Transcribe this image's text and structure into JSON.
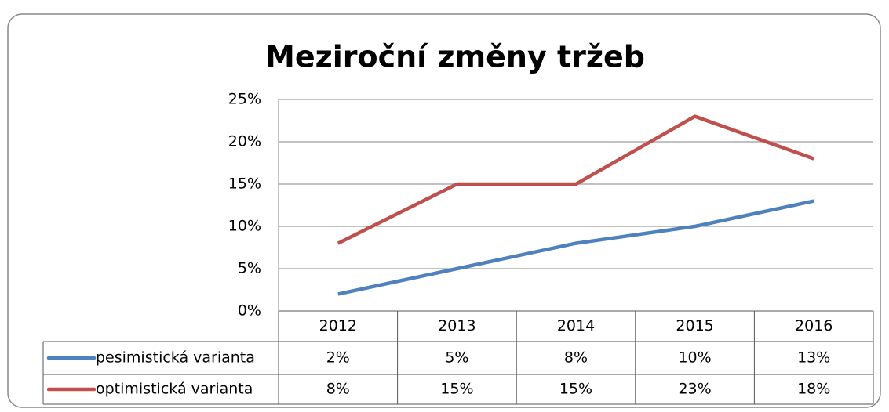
{
  "chart_data": {
    "type": "line",
    "title": "Meziroční změny tržeb",
    "categories": [
      "2012",
      "2013",
      "2014",
      "2015",
      "2016"
    ],
    "series": [
      {
        "name": "pesimistická varianta",
        "color": "#4f81bd",
        "values": [
          2,
          5,
          8,
          10,
          13
        ],
        "value_labels": [
          "2%",
          "5%",
          "8%",
          "10%",
          "13%"
        ]
      },
      {
        "name": "optimistická varianta",
        "color": "#c0504d",
        "values": [
          8,
          15,
          15,
          23,
          18
        ],
        "value_labels": [
          "8%",
          "15%",
          "15%",
          "23%",
          "18%"
        ]
      }
    ],
    "ylim": [
      0,
      25
    ],
    "yticks": [
      {
        "value": 0,
        "label": "0%"
      },
      {
        "value": 5,
        "label": "5%"
      },
      {
        "value": 10,
        "label": "10%"
      },
      {
        "value": 15,
        "label": "15%"
      },
      {
        "value": 20,
        "label": "20%"
      },
      {
        "value": 25,
        "label": "25%"
      }
    ],
    "grid": true
  }
}
